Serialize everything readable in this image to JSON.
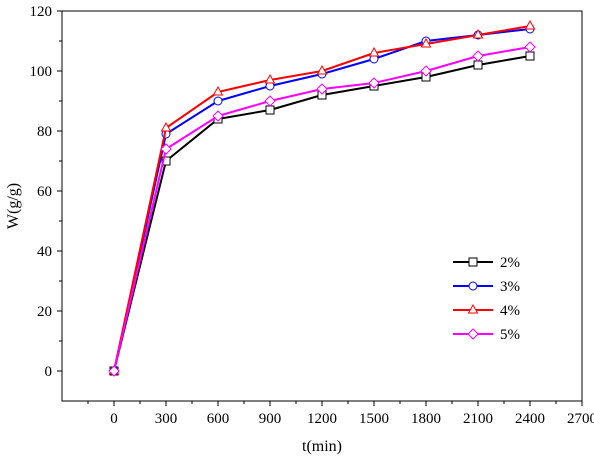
{
  "chart_data": {
    "type": "line",
    "xlabel": "t(min)",
    "ylabel": "W(g/g)",
    "xlim": [
      -300,
      2700
    ],
    "ylim": [
      -10,
      120
    ],
    "x_ticks": [
      0,
      300,
      600,
      900,
      1200,
      1500,
      1800,
      2100,
      2400,
      2700
    ],
    "y_ticks": [
      0,
      20,
      40,
      60,
      80,
      100,
      120
    ],
    "x_tick_labels": [
      "0",
      "300",
      "600",
      "900",
      "1200",
      "1500",
      "1800",
      "2100",
      "2400",
      "2700"
    ],
    "y_tick_labels": [
      "0",
      "20",
      "40",
      "60",
      "80",
      "100",
      "120"
    ],
    "grid": false,
    "legend_position": "center-right",
    "x": [
      0,
      300,
      600,
      900,
      1200,
      1500,
      1800,
      2100,
      2400
    ],
    "series": [
      {
        "name": "2%",
        "color": "#000000",
        "marker": "square",
        "values": [
          0,
          70,
          84,
          87,
          92,
          95,
          98,
          102,
          105
        ]
      },
      {
        "name": "3%",
        "color": "#0000ff",
        "marker": "circle",
        "values": [
          0,
          79,
          90,
          95,
          99,
          104,
          110,
          112,
          114
        ]
      },
      {
        "name": "4%",
        "color": "#ff0000",
        "marker": "triangle",
        "values": [
          0,
          81,
          93,
          97,
          100,
          106,
          109,
          112,
          115
        ]
      },
      {
        "name": "5%",
        "color": "#ff00ff",
        "marker": "diamond",
        "values": [
          0,
          74,
          85,
          90,
          94,
          96,
          100,
          105,
          108
        ]
      }
    ]
  }
}
